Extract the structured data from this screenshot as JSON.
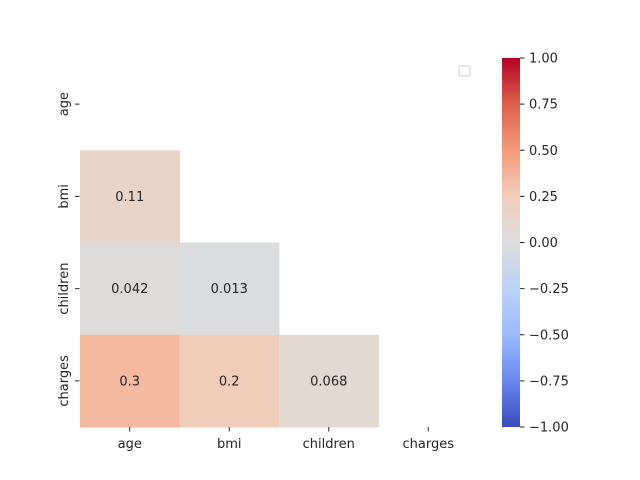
{
  "chart_data": {
    "type": "heatmap",
    "title": "",
    "xlabel": "",
    "ylabel": "",
    "categories": [
      "age",
      "bmi",
      "children",
      "charges"
    ],
    "mask": "upper-triangle-including-diagonal",
    "cells": [
      {
        "row": "bmi",
        "col": "age",
        "value": 0.11,
        "label": "0.11",
        "color": "#e8d5c8"
      },
      {
        "row": "children",
        "col": "age",
        "value": 0.042,
        "label": "0.042",
        "color": "#dedcdb"
      },
      {
        "row": "children",
        "col": "bmi",
        "value": 0.013,
        "label": "0.013",
        "color": "#dbdcde"
      },
      {
        "row": "charges",
        "col": "age",
        "value": 0.3,
        "label": "0.3",
        "color": "#f4b99f"
      },
      {
        "row": "charges",
        "col": "bmi",
        "value": 0.2,
        "label": "0.2",
        "color": "#efcdb9"
      },
      {
        "row": "charges",
        "col": "children",
        "value": 0.068,
        "label": "0.068",
        "color": "#e2d9d3"
      }
    ],
    "colorbar": {
      "colormap": "coolwarm",
      "vmin": -1.0,
      "vmax": 1.0,
      "ticks": [
        1.0,
        0.75,
        0.5,
        0.25,
        0.0,
        -0.25,
        -0.5,
        -0.75,
        -1.0
      ],
      "tick_labels": [
        "1.00",
        "0.75",
        "0.50",
        "0.25",
        "0.00",
        "−0.25",
        "−0.50",
        "−0.75",
        "−1.00"
      ],
      "stops": [
        {
          "value": 1.0,
          "color": "#b40426"
        },
        {
          "value": 0.75,
          "color": "#dd5f4b"
        },
        {
          "value": 0.5,
          "color": "#f49a7b"
        },
        {
          "value": 0.25,
          "color": "#f1cdba"
        },
        {
          "value": 0.0,
          "color": "#dddddd"
        },
        {
          "value": -0.25,
          "color": "#bcd2f7"
        },
        {
          "value": -0.5,
          "color": "#9abbff"
        },
        {
          "value": -0.75,
          "color": "#6788ee"
        },
        {
          "value": -1.0,
          "color": "#3b4cc0"
        }
      ]
    },
    "legend": {
      "position": "top-right",
      "entries": []
    },
    "grid": false
  }
}
